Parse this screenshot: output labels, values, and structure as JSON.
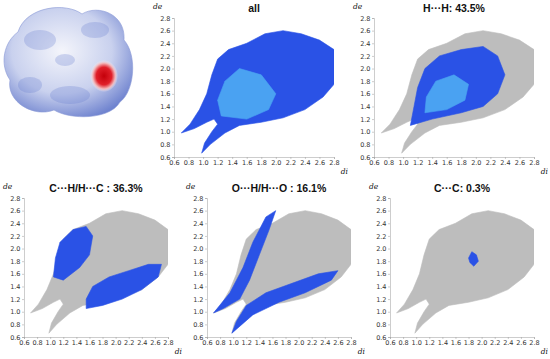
{
  "chart_data": [
    {
      "type": "fingerprint",
      "title": "all",
      "xlabel": "di",
      "ylabel": "de",
      "xlim": [
        0.6,
        2.8
      ],
      "ylim": [
        0.6,
        2.8
      ],
      "xticks": [
        0.6,
        0.8,
        {
          "value": 1,
          "label": "1.0"
        },
        1.2,
        1.4,
        1.6,
        1.8,
        {
          "value": 2,
          "label": "2.0"
        },
        2.2,
        2.4,
        2.6,
        2.8
      ],
      "yticks": [
        0.6,
        0.8,
        {
          "value": 1,
          "label": "1.0"
        },
        1.2,
        1.4,
        1.6,
        1.8,
        {
          "value": 2,
          "label": "2.0"
        },
        2.2,
        2.4,
        2.6,
        2.8
      ],
      "series": [
        {
          "color": "#2a52e6",
          "x": [
            0.98,
            1.1,
            1.3,
            1.5,
            1.8,
            2.1,
            2.4,
            2.65,
            2.8,
            2.8,
            2.6,
            2.35,
            2.1,
            1.85,
            1.6,
            1.35,
            1.2,
            1.12,
            1.05,
            0.95,
            0.82,
            0.7,
            0.88,
            1.05,
            1.15,
            1.2,
            1.12,
            1.02
          ],
          "y": [
            0.66,
            0.8,
            0.98,
            1.1,
            1.15,
            1.22,
            1.35,
            1.55,
            1.75,
            2.3,
            2.45,
            2.55,
            2.6,
            2.55,
            2.4,
            2.3,
            2.15,
            1.9,
            1.6,
            1.35,
            1.12,
            0.98,
            1.05,
            1.15,
            1.2,
            1.12,
            1.0,
            0.82
          ]
        },
        {
          "color": "#4aa2f2",
          "x": [
            1.25,
            1.6,
            1.9,
            2.0,
            1.8,
            1.5,
            1.3,
            1.2
          ],
          "y": [
            1.25,
            1.2,
            1.35,
            1.6,
            1.9,
            2.0,
            1.8,
            1.5
          ]
        }
      ]
    },
    {
      "type": "fingerprint",
      "title": "H···H: 43.5%",
      "xlabel": "di",
      "ylabel": "de",
      "xlim": [
        0.6,
        2.8
      ],
      "ylim": [
        0.6,
        2.8
      ],
      "xticks": [
        0.6,
        0.8,
        {
          "value": 1,
          "label": "1.0"
        },
        1.2,
        1.4,
        1.6,
        1.8,
        {
          "value": 2,
          "label": "2.0"
        },
        2.2,
        2.4,
        2.6,
        2.8
      ],
      "yticks": [
        0.6,
        0.8,
        {
          "value": 1,
          "label": "1.0"
        },
        1.2,
        1.4,
        1.6,
        1.8,
        {
          "value": 2,
          "label": "2.0"
        },
        2.2,
        2.4,
        2.6,
        2.8
      ],
      "series": [
        {
          "color": "#2a52e6",
          "x": [
            1.1,
            1.4,
            1.8,
            2.1,
            2.3,
            2.4,
            2.3,
            2.1,
            1.8,
            1.5,
            1.3,
            1.2,
            1.15
          ],
          "y": [
            1.1,
            1.2,
            1.3,
            1.4,
            1.6,
            1.9,
            2.2,
            2.35,
            2.3,
            2.2,
            2.0,
            1.7,
            1.4
          ]
        },
        {
          "color": "#4aa2f2",
          "x": [
            1.3,
            1.6,
            1.85,
            1.9,
            1.7,
            1.45,
            1.32
          ],
          "y": [
            1.3,
            1.35,
            1.5,
            1.75,
            1.9,
            1.8,
            1.55
          ]
        }
      ]
    },
    {
      "type": "fingerprint",
      "title": "C···H/H···C : 36.3%",
      "xlabel": "di",
      "ylabel": "de",
      "xlim": [
        0.6,
        2.8
      ],
      "ylim": [
        0.6,
        2.8
      ],
      "xticks": [
        0.6,
        0.8,
        {
          "value": 1,
          "label": "1.0"
        },
        1.2,
        1.4,
        1.6,
        1.8,
        {
          "value": 2,
          "label": "2.0"
        },
        2.2,
        2.4,
        2.6,
        2.8
      ],
      "yticks": [
        0.6,
        0.8,
        {
          "value": 1,
          "label": "1.0"
        },
        1.2,
        1.4,
        1.6,
        1.8,
        {
          "value": 2,
          "label": "2.0"
        },
        2.2,
        2.4,
        2.6,
        2.8
      ],
      "series": [
        {
          "color": "#2a52e6",
          "x": [
            1.05,
            1.2,
            1.45,
            1.6,
            1.65,
            1.55,
            1.35,
            1.15,
            1.08
          ],
          "y": [
            1.55,
            1.5,
            1.7,
            1.9,
            2.2,
            2.35,
            2.3,
            2.1,
            1.85
          ]
        },
        {
          "color": "#2a52e6",
          "x": [
            1.55,
            1.8,
            2.1,
            2.4,
            2.65,
            2.7,
            2.5,
            2.2,
            1.9,
            1.65,
            1.55
          ],
          "y": [
            1.05,
            1.1,
            1.2,
            1.35,
            1.55,
            1.75,
            1.75,
            1.65,
            1.55,
            1.4,
            1.2
          ]
        }
      ]
    },
    {
      "type": "fingerprint",
      "title": "O···H/H···O : 16.1%",
      "xlabel": "di",
      "ylabel": "de",
      "xlim": [
        0.6,
        2.8
      ],
      "ylim": [
        0.6,
        2.8
      ],
      "xticks": [
        0.6,
        0.8,
        {
          "value": 1,
          "label": "1.0"
        },
        1.2,
        1.4,
        1.6,
        1.8,
        {
          "value": 2,
          "label": "2.0"
        },
        2.2,
        2.4,
        2.6,
        2.8
      ],
      "yticks": [
        0.6,
        0.8,
        {
          "value": 1,
          "label": "1.0"
        },
        1.2,
        1.4,
        1.6,
        1.8,
        {
          "value": 2,
          "label": "2.0"
        },
        2.2,
        2.4,
        2.6,
        2.8
      ],
      "series": [
        {
          "color": "#2a52e6",
          "x": [
            0.98,
            1.3,
            1.7,
            2.1,
            2.5,
            2.6,
            2.3,
            1.9,
            1.5,
            1.2,
            1.05
          ],
          "y": [
            0.66,
            0.95,
            1.15,
            1.3,
            1.5,
            1.65,
            1.6,
            1.45,
            1.3,
            1.1,
            0.85
          ]
        },
        {
          "color": "#2a52e6",
          "x": [
            0.7,
            0.95,
            1.15,
            1.3,
            1.5,
            1.65,
            1.55,
            1.4,
            1.25,
            1.1,
            0.85
          ],
          "y": [
            0.98,
            1.3,
            1.7,
            2.1,
            2.5,
            2.6,
            2.3,
            1.9,
            1.5,
            1.2,
            1.05
          ]
        }
      ]
    },
    {
      "type": "fingerprint",
      "title": "C···C: 0.3%",
      "xlabel": "di",
      "ylabel": "de",
      "xlim": [
        0.6,
        2.8
      ],
      "ylim": [
        0.6,
        2.8
      ],
      "xticks": [
        0.6,
        0.8,
        {
          "value": 1,
          "label": "1.0"
        },
        1.2,
        1.4,
        1.6,
        1.8,
        {
          "value": 2,
          "label": "2.0"
        },
        2.2,
        2.4,
        2.6,
        2.8
      ],
      "yticks": [
        0.6,
        0.8,
        {
          "value": 1,
          "label": "1.0"
        },
        1.2,
        1.4,
        1.6,
        1.8,
        {
          "value": 2,
          "label": "2.0"
        },
        2.2,
        2.4,
        2.6,
        2.8
      ],
      "series": [
        {
          "color": "#2a52e6",
          "x": [
            1.8,
            1.85,
            1.92,
            1.95,
            1.88,
            1.82
          ],
          "y": [
            1.85,
            1.95,
            1.9,
            1.8,
            1.72,
            1.78
          ]
        }
      ]
    }
  ]
}
